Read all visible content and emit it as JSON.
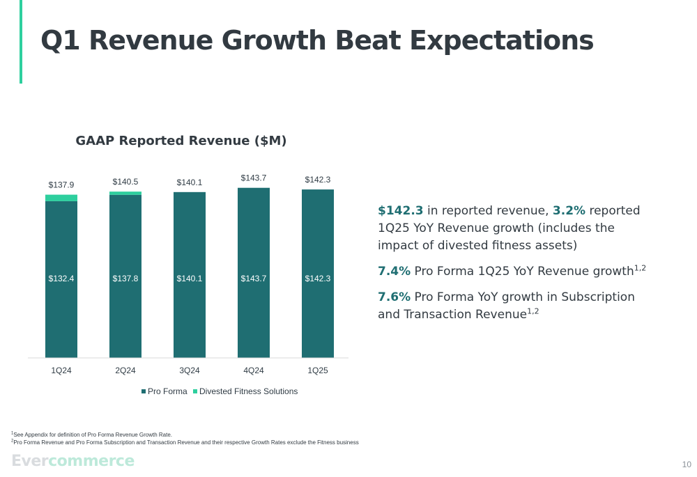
{
  "slide": {
    "title": "Q1 Revenue Growth Beat Expectations",
    "page_number": "10"
  },
  "colors": {
    "pro_forma": "#1f6e72",
    "divested": "#2ecf9e",
    "accent": "#2ecf9e",
    "highlight_text": "#1f6e72"
  },
  "chart_data": {
    "type": "bar",
    "stacked": true,
    "title": "GAAP Reported Revenue ($M)",
    "categories": [
      "1Q24",
      "2Q24",
      "3Q24",
      "4Q24",
      "1Q25"
    ],
    "series": [
      {
        "name": "Pro Forma",
        "values": [
          132.4,
          137.8,
          140.1,
          143.7,
          142.3
        ],
        "labels": [
          "$132.4",
          "$137.8",
          "$140.1",
          "$143.7",
          "$142.3"
        ]
      },
      {
        "name": "Divested Fitness Solutions",
        "values": [
          5.5,
          2.7,
          0,
          0,
          0
        ]
      }
    ],
    "totals": [
      137.9,
      140.5,
      140.1,
      143.7,
      142.3
    ],
    "total_labels": [
      "$137.9",
      "$140.5",
      "$140.1",
      "$143.7",
      "$142.3"
    ],
    "legend_position": "bottom",
    "grid": false
  },
  "highlights": [
    {
      "parts": [
        {
          "text": "$142.3",
          "emph": true
        },
        {
          "text": " in reported revenue, "
        },
        {
          "text": "3.2%",
          "emph": true
        },
        {
          "text": " reported 1Q25 YoY Revenue growth (includes the impact of divested fitness assets)"
        }
      ]
    },
    {
      "parts": [
        {
          "text": "7.4%",
          "emph": true
        },
        {
          "text": " Pro Forma 1Q25 YoY Revenue growth"
        },
        {
          "text": "1,2",
          "sup": true
        }
      ]
    },
    {
      "parts": [
        {
          "text": "7.6%",
          "emph": true
        },
        {
          "text": " Pro Forma YoY growth in Subscription and Transaction Revenue"
        },
        {
          "text": "1,2",
          "sup": true
        }
      ]
    }
  ],
  "footnotes": [
    {
      "marker": "1",
      "text": "See Appendix for definition of Pro Forma Revenue Growth Rate."
    },
    {
      "marker": "2",
      "text": "Pro Forma Revenue and Pro Forma Subscription and Transaction Revenue and their respective Growth Rates exclude the Fitness business"
    }
  ],
  "logo": {
    "part1": "Ever",
    "part2": "commerce"
  }
}
